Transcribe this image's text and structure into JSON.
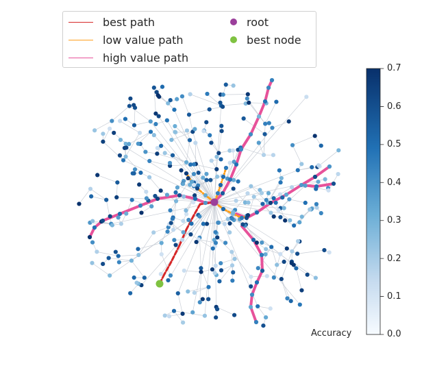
{
  "legend": {
    "items": [
      {
        "label": "best path",
        "kind": "line",
        "color": "#d62728"
      },
      {
        "label": "low value path",
        "kind": "line",
        "color": "#ff9f1c"
      },
      {
        "label": "high value path",
        "kind": "line",
        "color": "#e7529a"
      },
      {
        "label": "root",
        "kind": "dot",
        "color": "#9b3f9b"
      },
      {
        "label": "best node",
        "kind": "dot",
        "color": "#7fc241"
      }
    ]
  },
  "colorbar": {
    "label": "Accuracy",
    "ticks": [
      "0.0",
      "0.1",
      "0.2",
      "0.3",
      "0.4",
      "0.5",
      "0.6",
      "0.7"
    ],
    "min_color": "#f7fbff",
    "max_color": "#08306b"
  },
  "colors": {
    "edge": "#c9ced6",
    "best_path": "#d62728",
    "low_path": "#ff9f1c",
    "high_path": "#e7529a",
    "root": "#9b3f9b",
    "best_node": "#7fc241"
  }
}
